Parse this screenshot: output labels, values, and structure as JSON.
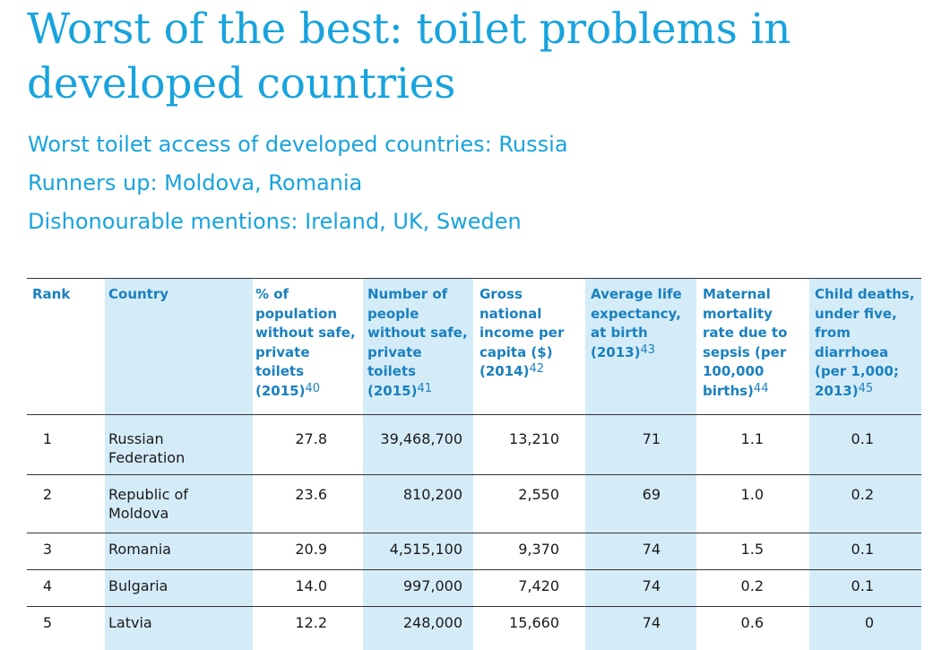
{
  "title": "Worst of the best: toilet problems in developed countries",
  "subtitles": [
    "Worst toilet access of developed countries: Russia",
    "Runners up: Moldova, Romania",
    "Dishonourable mentions: Ireland, UK, Sweden"
  ],
  "table": {
    "headers": [
      {
        "text": "Rank",
        "note": ""
      },
      {
        "text": "Country",
        "note": ""
      },
      {
        "text": "% of population without safe, private toilets (2015)",
        "note": "40"
      },
      {
        "text": "Number of people without safe, private toilets (2015)",
        "note": "41"
      },
      {
        "text": "Gross national income per capita ($) (2014)",
        "note": "42"
      },
      {
        "text": "Average life expectancy, at birth (2013)",
        "note": "43"
      },
      {
        "text": "Maternal mortality rate due to sepsis (per 100,000 births)",
        "note": "44"
      },
      {
        "text": "Child deaths, under five, from diarrhoea (per 1,000; 2013)",
        "note": "45"
      }
    ],
    "rows": [
      [
        "1",
        "Russian Federation",
        "27.8",
        "39,468,700",
        "13,210",
        "71",
        "1.1",
        "0.1"
      ],
      [
        "2",
        "Republic of Moldova",
        "23.6",
        "810,200",
        "2,550",
        "69",
        "1.0",
        "0.2"
      ],
      [
        "3",
        "Romania",
        "20.9",
        "4,515,100",
        "9,370",
        "74",
        "1.5",
        "0.1"
      ],
      [
        "4",
        "Bulgaria",
        "14.0",
        "997,000",
        "7,420",
        "74",
        "0.2",
        "0.1"
      ],
      [
        "5",
        "Latvia",
        "12.2",
        "248,000",
        "15,660",
        "74",
        "0.6",
        "0"
      ]
    ]
  }
}
